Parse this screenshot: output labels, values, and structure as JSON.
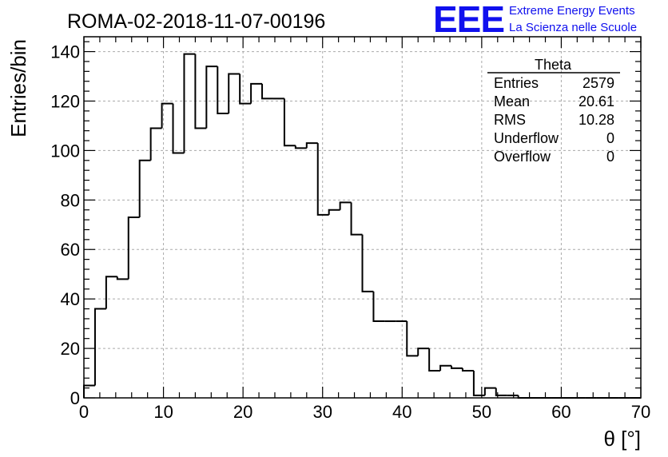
{
  "logo": {
    "mark": "EEE",
    "line1": "Extreme Energy Events",
    "line2": "La Scienza nelle Scuole",
    "color": "#1010ee"
  },
  "chart_data": {
    "type": "bar",
    "title": "ROMA-02-2018-11-07-00196",
    "xlabel": "θ [°]",
    "ylabel": "Entries/bin",
    "xlim": [
      0,
      70
    ],
    "ylim": [
      0,
      146
    ],
    "x_ticks": [
      0,
      10,
      20,
      30,
      40,
      50,
      60,
      70
    ],
    "y_ticks": [
      0,
      20,
      40,
      60,
      80,
      100,
      120,
      140
    ],
    "grid": true,
    "legend": "top-right",
    "bin_width": 1.4,
    "bin_edges_start": 0,
    "values": [
      5,
      36,
      49,
      48,
      73,
      96,
      109,
      119,
      99,
      139,
      109,
      134,
      115,
      131,
      119,
      127,
      121,
      121,
      102,
      101,
      103,
      74,
      76,
      79,
      66,
      43,
      31,
      31,
      31,
      17,
      20,
      11,
      13,
      12,
      11,
      1,
      4,
      1,
      1,
      0,
      0,
      0,
      0,
      0,
      0,
      0,
      0,
      0,
      0,
      0
    ],
    "stats_box": {
      "name": "Theta",
      "rows": [
        {
          "label": "Entries",
          "value": "2579"
        },
        {
          "label": "Mean",
          "value": "20.61"
        },
        {
          "label": "RMS",
          "value": "10.28"
        },
        {
          "label": "Underflow",
          "value": "0"
        },
        {
          "label": "Overflow",
          "value": "0"
        }
      ]
    }
  }
}
